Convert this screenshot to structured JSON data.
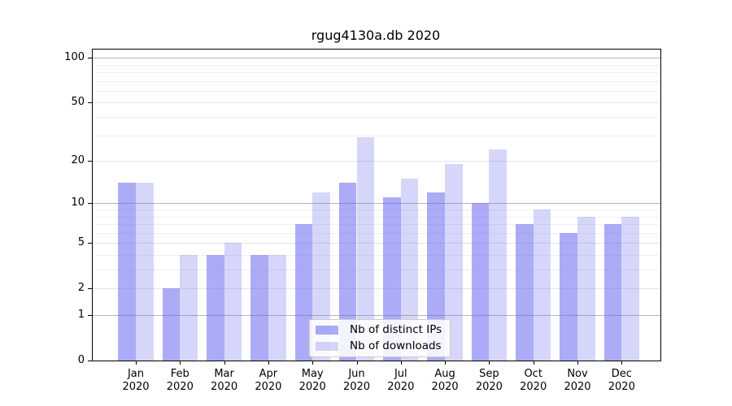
{
  "figure": {
    "background": "#ffffff"
  },
  "chart_data": {
    "type": "bar",
    "title": "rgug4130a.db 2020",
    "categories": [
      "Jan",
      "Feb",
      "Mar",
      "Apr",
      "May",
      "Jun",
      "Jul",
      "Aug",
      "Sep",
      "Oct",
      "Nov",
      "Dec"
    ],
    "category_year": "2020",
    "series": [
      {
        "name": "Nb of distinct IPs",
        "color": "rgba(102,102,238,0.55)",
        "values": [
          14,
          2,
          4,
          4,
          7,
          14,
          11,
          12,
          10,
          7,
          6,
          7
        ]
      },
      {
        "name": "Nb of downloads",
        "color": "rgba(102,102,238,0.27)",
        "values": [
          14,
          4,
          5,
          4,
          12,
          29,
          15,
          19,
          24,
          9,
          8,
          8
        ]
      }
    ],
    "y_scale": "log10(1+x)",
    "y_ticks": [
      0,
      1,
      2,
      5,
      10,
      20,
      50,
      100
    ],
    "y_minor_ticks": [
      3,
      4,
      6,
      7,
      8,
      9,
      30,
      40,
      60,
      70,
      80,
      90
    ],
    "ylim": [
      0,
      114
    ],
    "grid": true,
    "legend_position": "lower center",
    "colors": {
      "bar_base": "#6666ee",
      "grid_decade": "#b5b5b5",
      "grid_major": "#e4e4e4",
      "grid_minor": "#f0f0f0",
      "axis": "#000000"
    }
  }
}
